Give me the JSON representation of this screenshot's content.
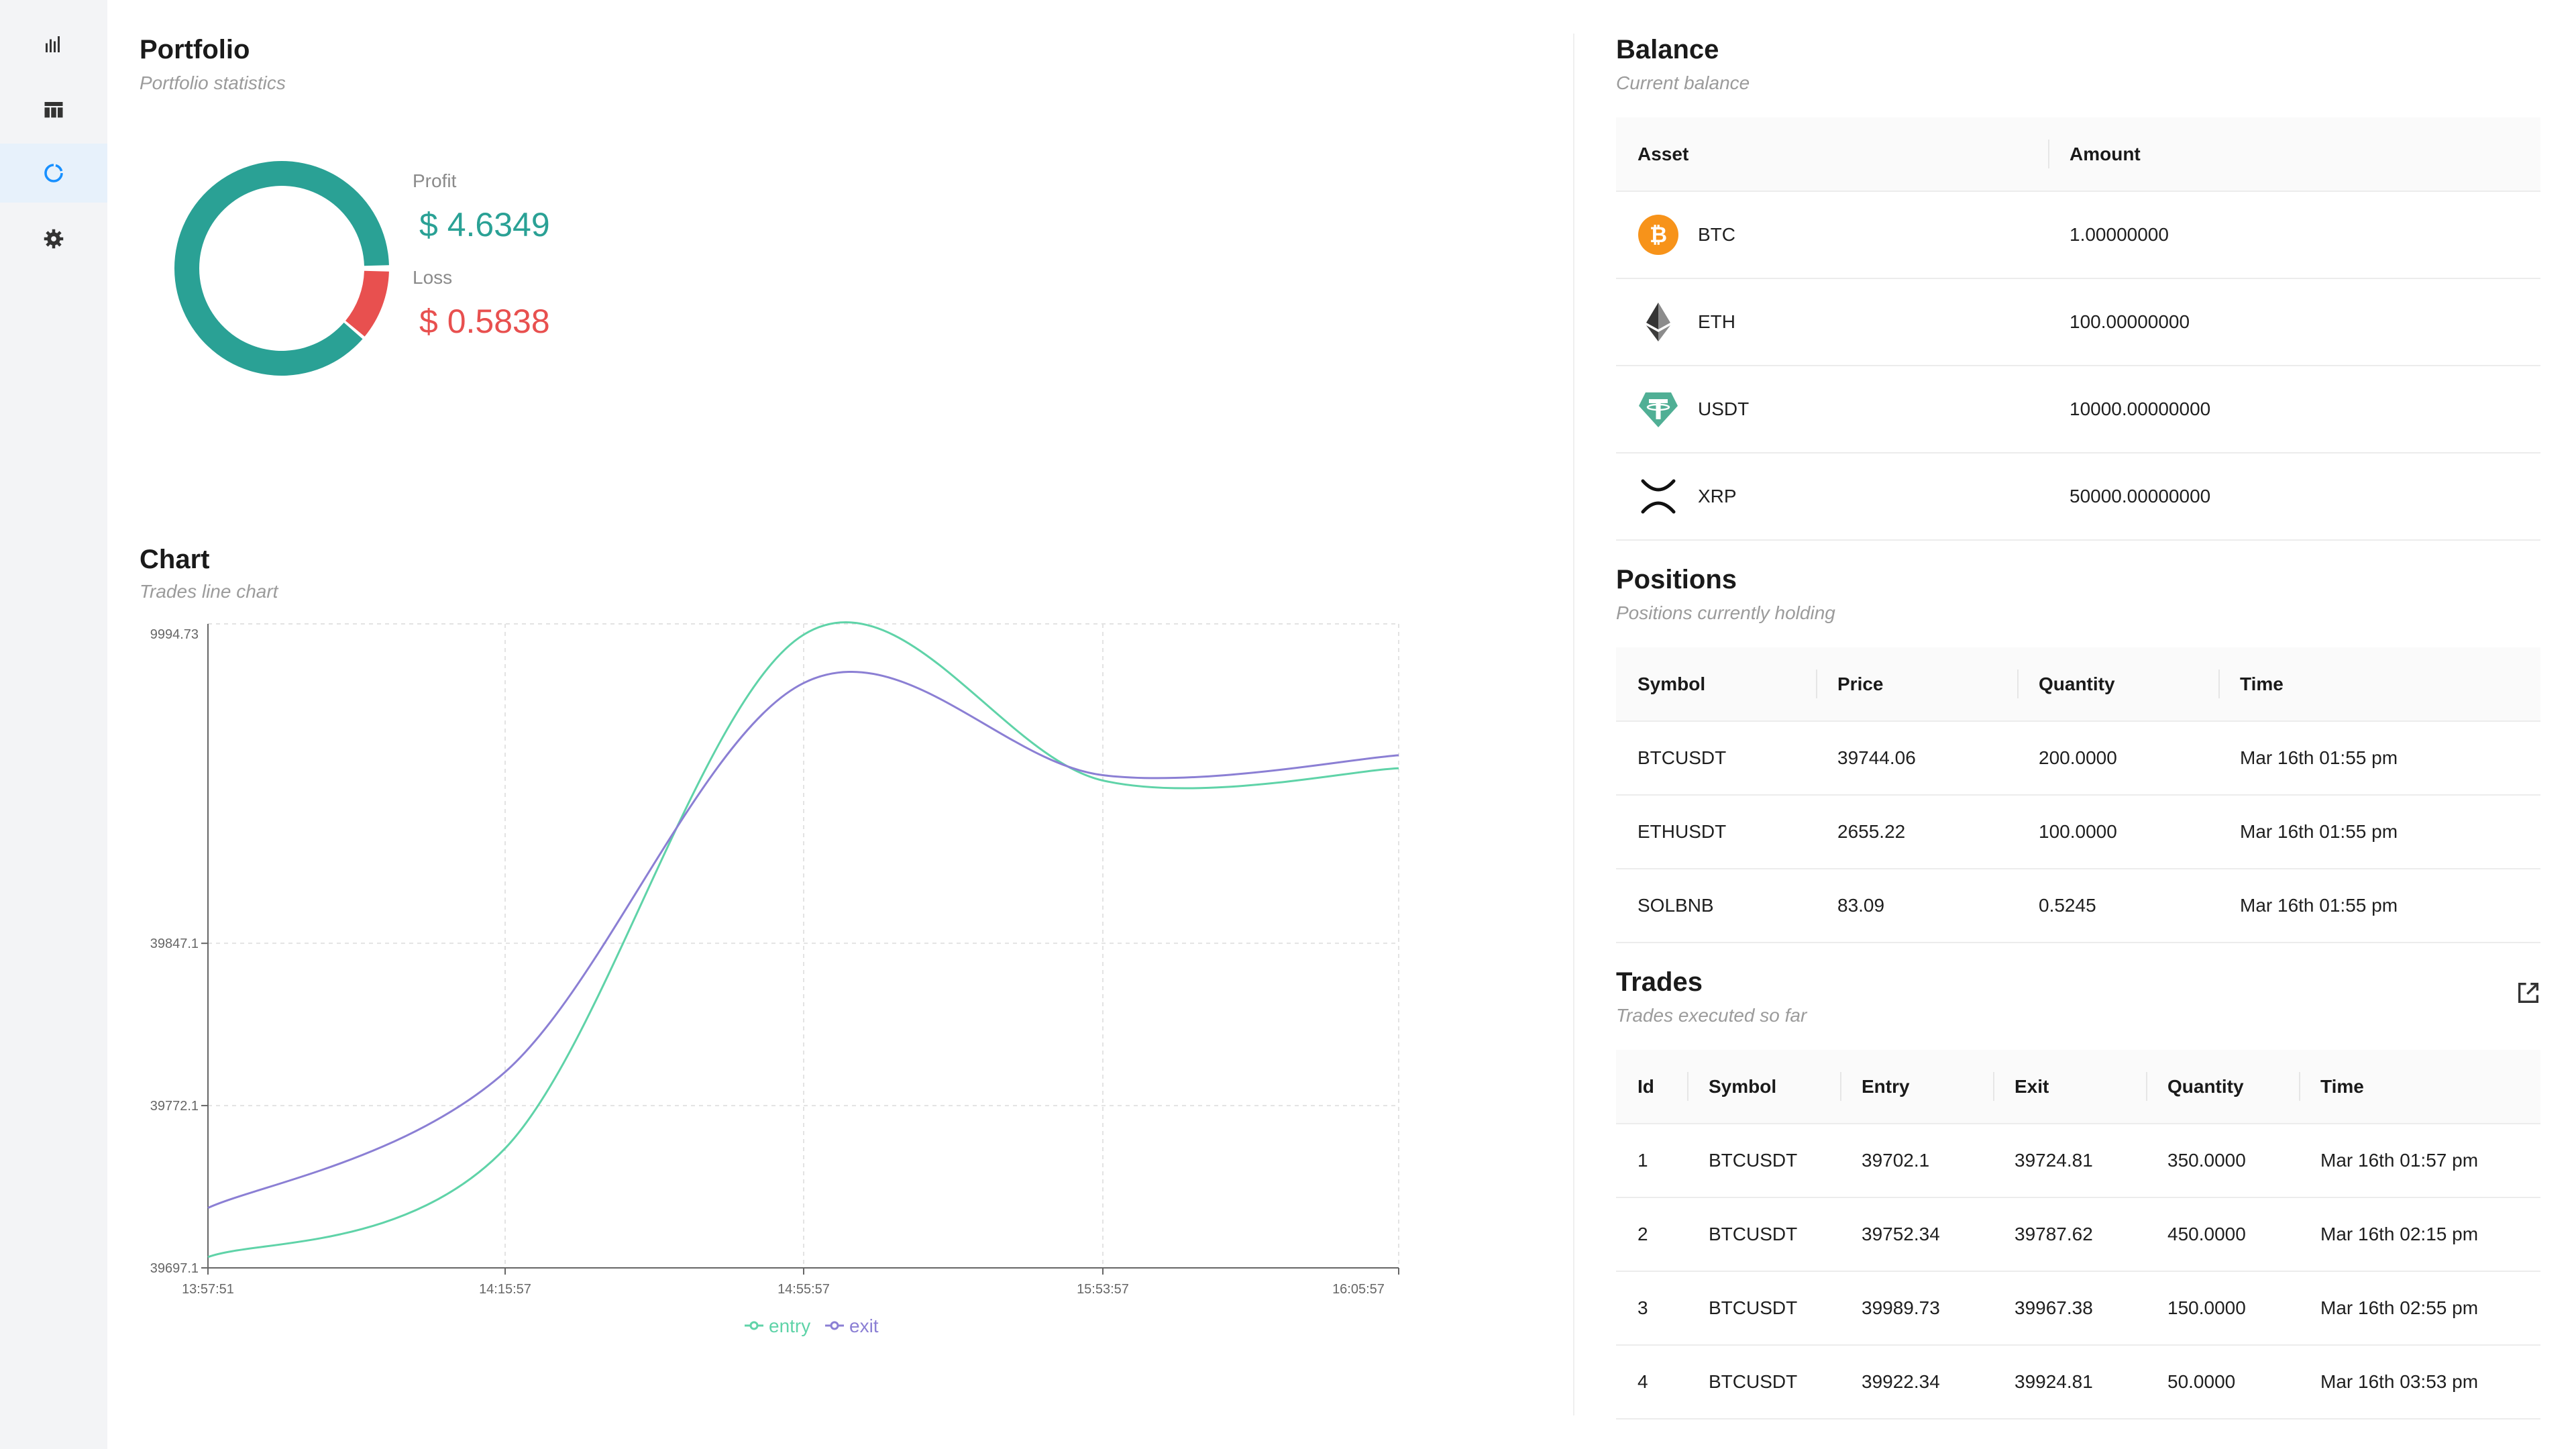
{
  "sidebar": {
    "items": [
      {
        "icon": "bar-chart-icon",
        "active": false
      },
      {
        "icon": "table-icon",
        "active": false
      },
      {
        "icon": "pie-icon",
        "active": true
      },
      {
        "icon": "gear-icon",
        "active": false
      }
    ]
  },
  "portfolio": {
    "title": "Portfolio",
    "subtitle": "Portfolio statistics",
    "profit_label": "Profit",
    "profit_value": "$ 4.6349",
    "loss_label": "Loss",
    "loss_value": "$ 0.5838",
    "donut": {
      "profit": 4.6349,
      "loss": 0.5838,
      "profit_color": "#2aa195",
      "loss_color": "#e8504f"
    }
  },
  "chart": {
    "title": "Chart",
    "subtitle": "Trades line chart",
    "legend": {
      "entry": "entry",
      "exit": "exit"
    }
  },
  "chart_data": {
    "type": "line",
    "x": [
      "13:57:51",
      "14:15:57",
      "14:55:57",
      "15:53:57",
      "16:05:57"
    ],
    "y_ticks": [
      "39697.1",
      "39772.1",
      "39847.1",
      "9994.73"
    ],
    "series": [
      {
        "name": "entry",
        "color": "#5fd3a8",
        "values": [
          39702.1,
          39752.34,
          39989.73,
          39922.34,
          39928.0
        ]
      },
      {
        "name": "exit",
        "color": "#8b7fd4",
        "values": [
          39724.81,
          39787.62,
          39967.38,
          39924.81,
          39934.0
        ]
      }
    ],
    "grid": true,
    "legend_position": "bottom-center"
  },
  "balance": {
    "title": "Balance",
    "subtitle": "Current balance",
    "columns": [
      "Asset",
      "Amount"
    ],
    "rows": [
      {
        "asset": "BTC",
        "amount": "1.00000000",
        "icon": "bitcoin-icon",
        "color": "#f7931a"
      },
      {
        "asset": "ETH",
        "amount": "100.00000000",
        "icon": "ethereum-icon",
        "color": "#343434"
      },
      {
        "asset": "USDT",
        "amount": "10000.00000000",
        "icon": "tether-icon",
        "color": "#50af95"
      },
      {
        "asset": "XRP",
        "amount": "50000.00000000",
        "icon": "xrp-icon",
        "color": "#23292f"
      }
    ]
  },
  "positions": {
    "title": "Positions",
    "subtitle": "Positions currently holding",
    "columns": [
      "Symbol",
      "Price",
      "Quantity",
      "Time"
    ],
    "rows": [
      [
        "BTCUSDT",
        "39744.06",
        "200.0000",
        "Mar 16th 01:55 pm"
      ],
      [
        "ETHUSDT",
        "2655.22",
        "100.0000",
        "Mar 16th 01:55 pm"
      ],
      [
        "SOLBNB",
        "83.09",
        "0.5245",
        "Mar 16th 01:55 pm"
      ]
    ]
  },
  "trades": {
    "title": "Trades",
    "subtitle": "Trades executed so far",
    "columns": [
      "Id",
      "Symbol",
      "Entry",
      "Exit",
      "Quantity",
      "Time"
    ],
    "rows": [
      [
        "1",
        "BTCUSDT",
        "39702.1",
        "39724.81",
        "350.0000",
        "Mar 16th 01:57 pm"
      ],
      [
        "2",
        "BTCUSDT",
        "39752.34",
        "39787.62",
        "450.0000",
        "Mar 16th 02:15 pm"
      ],
      [
        "3",
        "BTCUSDT",
        "39989.73",
        "39967.38",
        "150.0000",
        "Mar 16th 02:55 pm"
      ],
      [
        "4",
        "BTCUSDT",
        "39922.34",
        "39924.81",
        "50.0000",
        "Mar 16th 03:53 pm"
      ]
    ]
  }
}
